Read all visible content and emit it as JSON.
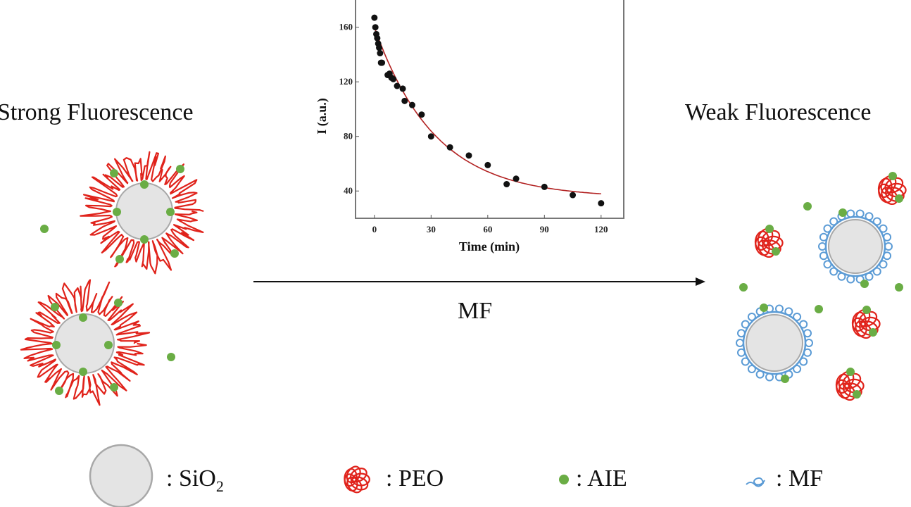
{
  "labels": {
    "left_title": "Strong Fluorescence",
    "right_title": "Weak Fluorescence",
    "arrow_label": "MF"
  },
  "legend": [
    {
      "key": "sio2",
      "text": ": SiO",
      "sub": "2"
    },
    {
      "key": "peo",
      "text": ": PEO"
    },
    {
      "key": "aie",
      "text": ": AIE"
    },
    {
      "key": "mf",
      "text": ": MF"
    }
  ],
  "colors": {
    "peo": "#e0231b",
    "aie": "#6aad45",
    "mf": "#5b9bd5",
    "silica_fill": "#e4e4e4",
    "silica_stroke": "#a8a8a8",
    "fit": "#b22222"
  },
  "chart_data": {
    "type": "scatter",
    "title": "",
    "xlabel": "Time (min)",
    "ylabel": "I (a.u.)",
    "xlim": [
      -10,
      132
    ],
    "ylim": [
      20,
      181
    ],
    "xticks": [
      0,
      30,
      60,
      90,
      120
    ],
    "yticks": [
      40,
      80,
      120,
      160
    ],
    "grid": false,
    "x": [
      0,
      0.5,
      1,
      1.5,
      2,
      2.5,
      3,
      3.5,
      4,
      7,
      8,
      9,
      10,
      12,
      15,
      16,
      20,
      25,
      30,
      40,
      50,
      60,
      70,
      75,
      90,
      105,
      120
    ],
    "y": [
      167,
      160,
      155,
      152,
      148,
      145,
      141,
      134,
      134,
      125,
      126,
      123,
      122,
      117,
      115,
      106,
      103,
      96,
      80,
      72,
      66,
      59,
      45,
      49,
      43,
      37,
      31
    ],
    "fit": {
      "model": "exponential decay",
      "y0": 35,
      "A": 125,
      "tau": 32,
      "x_range": [
        0,
        120
      ]
    }
  }
}
